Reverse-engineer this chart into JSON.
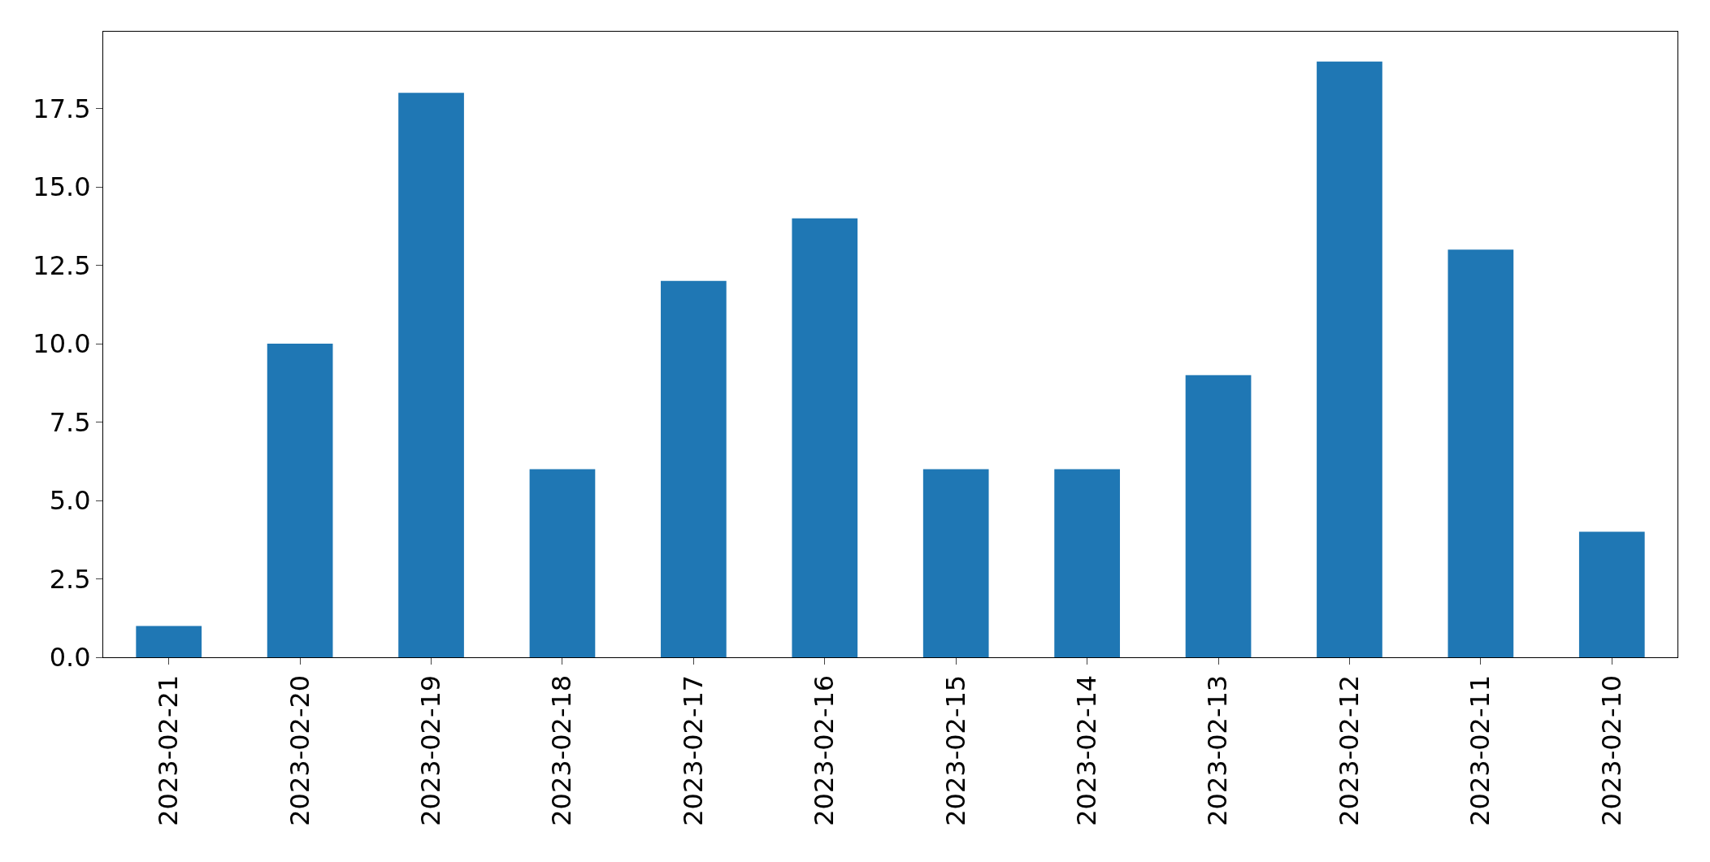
{
  "chart_data": {
    "type": "bar",
    "categories": [
      "2023-02-21",
      "2023-02-20",
      "2023-02-19",
      "2023-02-18",
      "2023-02-17",
      "2023-02-16",
      "2023-02-15",
      "2023-02-14",
      "2023-02-13",
      "2023-02-12",
      "2023-02-11",
      "2023-02-10"
    ],
    "values": [
      1,
      10,
      18,
      6,
      12,
      14,
      6,
      6,
      9,
      19,
      13,
      4
    ],
    "color": "#1f77b4",
    "ylim": [
      0,
      19.95
    ],
    "yticks": [
      {
        "value": 0,
        "label": "0.0"
      },
      {
        "value": 2.5,
        "label": "2.5"
      },
      {
        "value": 5,
        "label": "5.0"
      },
      {
        "value": 7.5,
        "label": "7.5"
      },
      {
        "value": 10,
        "label": "10.0"
      },
      {
        "value": 12.5,
        "label": "12.5"
      },
      {
        "value": 15,
        "label": "15.0"
      },
      {
        "value": 17.5,
        "label": "17.5"
      }
    ],
    "legend": false
  }
}
